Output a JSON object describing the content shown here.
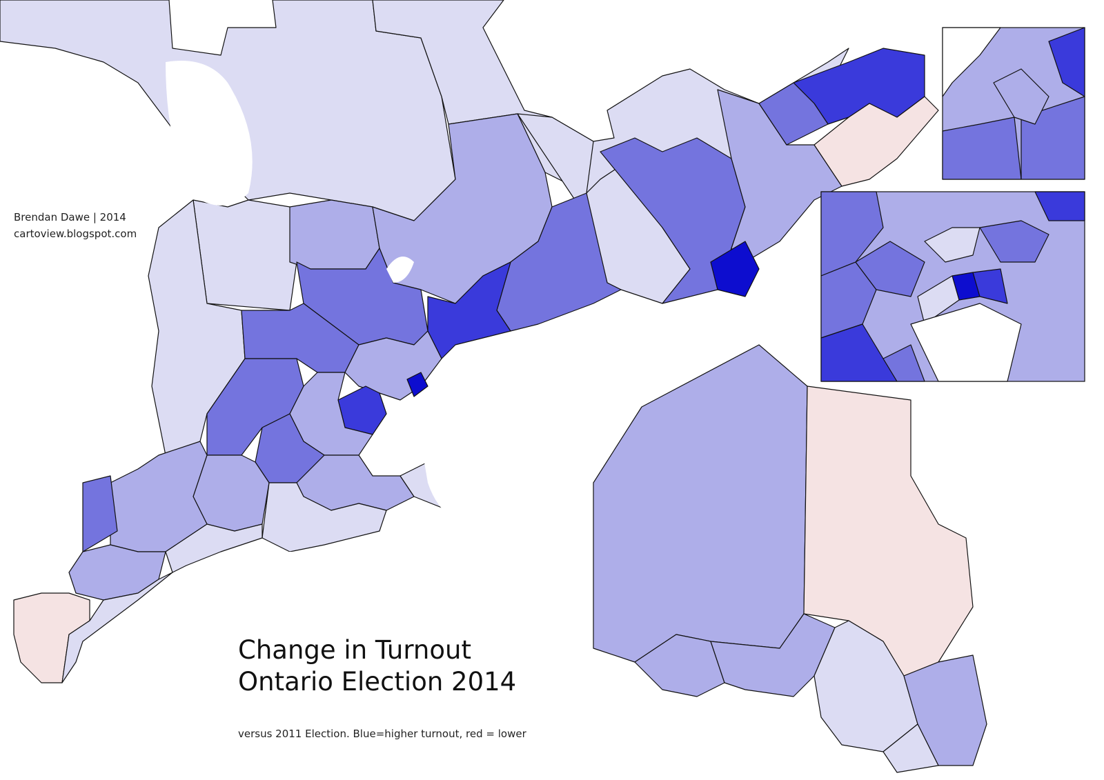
{
  "credit": {
    "author": "Brendan Dawe | 2014",
    "site": "cartoview.blogspot.com"
  },
  "title": {
    "line1": "Change in Turnout",
    "line2": "Ontario Election 2014"
  },
  "note": "versus 2011 Election. Blue=higher turnout, red = lower",
  "colors": {
    "lower_turnout": "#f5e3e3",
    "slight_increase": "#dcdcf3",
    "moderate_increase": "#aeaee9",
    "higher_increase": "#7474de",
    "high_increase": "#3a3adb",
    "highest_increase": "#0d0dcf"
  }
}
